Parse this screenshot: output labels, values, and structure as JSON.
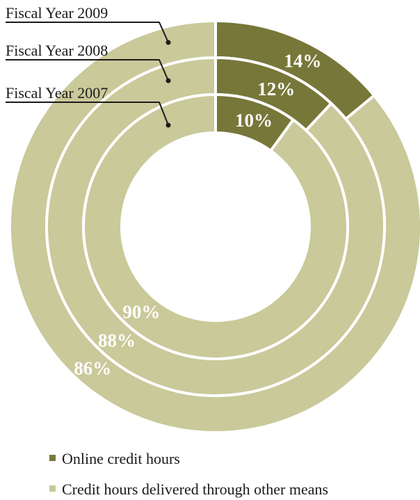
{
  "chart_data": {
    "type": "pie",
    "subtype": "nested-donut",
    "categories": [
      "Online credit hours",
      "Credit hours delivered through other means"
    ],
    "colors": [
      "#77773a",
      "#c9c99a"
    ],
    "rings": [
      {
        "name": "Fiscal Year 2009",
        "values": [
          14,
          86
        ],
        "labels": [
          "14%",
          "86%"
        ]
      },
      {
        "name": "Fiscal Year 2008",
        "values": [
          12,
          88
        ],
        "labels": [
          "12%",
          "88%"
        ]
      },
      {
        "name": "Fiscal Year 2007",
        "values": [
          10,
          90
        ],
        "labels": [
          "10%",
          "90%"
        ]
      }
    ],
    "legend": {
      "position": "bottom-left",
      "items": [
        "Online credit hours",
        "Credit hours delivered through other means"
      ]
    }
  }
}
